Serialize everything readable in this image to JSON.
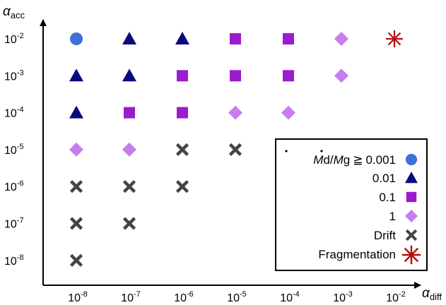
{
  "chart_data": {
    "type": "scatter",
    "title": "",
    "xlabel": {
      "base": "α",
      "sub": "diff"
    },
    "ylabel": {
      "base": "α",
      "sub": "acc"
    },
    "x_ticks": [
      "-8",
      "-7",
      "-6",
      "-5",
      "-4",
      "-3",
      "-2"
    ],
    "y_ticks": [
      "-2",
      "-3",
      "-4",
      "-5",
      "-6",
      "-7",
      "-8"
    ],
    "tick_base": "10",
    "x_scale": "log",
    "y_scale": "log",
    "xlim_exp": [
      -8,
      -2
    ],
    "ylim_exp": [
      -8,
      -2
    ],
    "grid": false,
    "legend_position": "bottom-right",
    "legend": {
      "header": {
        "md": "M",
        "d": "d",
        "slash": "/",
        "mg": "M",
        "g": "g",
        "op": "≧"
      },
      "entries": [
        {
          "key": "c001",
          "label": "0.001",
          "marker": "circle",
          "color": "#3F6FD8"
        },
        {
          "key": "c01",
          "label": "0.01",
          "marker": "triangle",
          "color": "#0A0A80"
        },
        {
          "key": "c1",
          "label": "0.1",
          "marker": "square",
          "color": "#9B1BCF"
        },
        {
          "key": "c1x",
          "label": "1",
          "marker": "diamond",
          "color": "#C77DF0"
        },
        {
          "key": "drift",
          "label": "Drift",
          "marker": "cross",
          "color": "#444444"
        },
        {
          "key": "frag",
          "label": "Fragmentation",
          "marker": "asterisk",
          "color": "#B01010"
        }
      ]
    },
    "series": [
      {
        "key": "c001",
        "points": [
          {
            "x": -8,
            "y": -2
          }
        ]
      },
      {
        "key": "c01",
        "points": [
          {
            "x": -7,
            "y": -2
          },
          {
            "x": -6,
            "y": -2
          },
          {
            "x": -8,
            "y": -3
          },
          {
            "x": -7,
            "y": -3
          },
          {
            "x": -8,
            "y": -4
          }
        ]
      },
      {
        "key": "c1",
        "points": [
          {
            "x": -5,
            "y": -2
          },
          {
            "x": -4,
            "y": -2
          },
          {
            "x": -6,
            "y": -3
          },
          {
            "x": -5,
            "y": -3
          },
          {
            "x": -4,
            "y": -3
          },
          {
            "x": -7,
            "y": -4
          },
          {
            "x": -6,
            "y": -4
          }
        ]
      },
      {
        "key": "c1x",
        "points": [
          {
            "x": -3,
            "y": -2
          },
          {
            "x": -3,
            "y": -3
          },
          {
            "x": -5,
            "y": -4
          },
          {
            "x": -4,
            "y": -4
          },
          {
            "x": -8,
            "y": -5
          },
          {
            "x": -7,
            "y": -5
          }
        ]
      },
      {
        "key": "drift",
        "points": [
          {
            "x": -6,
            "y": -5
          },
          {
            "x": -5,
            "y": -5
          },
          {
            "x": -8,
            "y": -6
          },
          {
            "x": -7,
            "y": -6
          },
          {
            "x": -6,
            "y": -6
          },
          {
            "x": -8,
            "y": -7
          },
          {
            "x": -7,
            "y": -7
          },
          {
            "x": -8,
            "y": -8
          }
        ]
      },
      {
        "key": "frag",
        "points": [
          {
            "x": -2,
            "y": -2
          }
        ]
      }
    ]
  }
}
